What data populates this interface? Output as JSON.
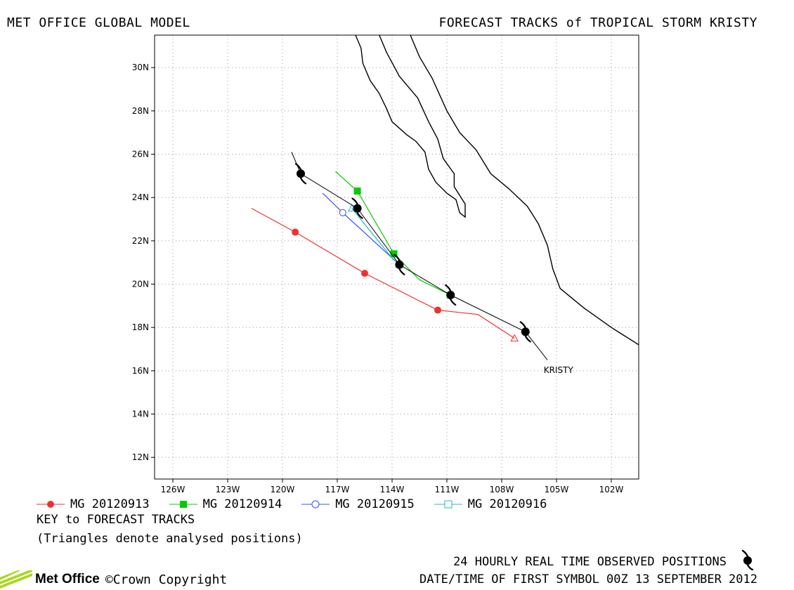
{
  "header": {
    "left_title": "MET OFFICE GLOBAL MODEL",
    "right_title": "FORECAST TRACKS of TROPICAL STORM KRISTY"
  },
  "map": {
    "lon_range": [
      -127,
      -100.5
    ],
    "lat_range": [
      11,
      31.5
    ],
    "lat_ticks": [
      "30N",
      "28N",
      "26N",
      "24N",
      "22N",
      "20N",
      "18N",
      "16N",
      "14N",
      "12N"
    ],
    "lon_ticks": [
      "126W",
      "123W",
      "120W",
      "117W",
      "114W",
      "111W",
      "108W",
      "105W",
      "102W"
    ],
    "grid": "dotted",
    "storm_label": "KRISTY",
    "colors": {
      "observed": "#000000",
      "mg_20120913": "#f03030",
      "mg_20120914": "#00cc00",
      "mg_20120915": "#3050ff",
      "mg_20120916": "#20b8c8",
      "coastline": "#000000"
    }
  },
  "chart_data": {
    "type": "map-tracks",
    "title": "FORECAST TRACKS of TROPICAL STORM KRISTY",
    "observed_track": {
      "line": [
        [
          -105.5,
          16.5
        ],
        [
          -106.7,
          17.8
        ],
        [
          -110.8,
          19.5
        ],
        [
          -113.6,
          20.9
        ],
        [
          -115.9,
          23.5
        ],
        [
          -119.0,
          25.1
        ],
        [
          -119.5,
          26.1
        ]
      ],
      "symbols": [
        [
          -106.7,
          17.8
        ],
        [
          -110.8,
          19.5
        ],
        [
          -113.6,
          20.9
        ],
        [
          -115.9,
          23.5
        ],
        [
          -119.0,
          25.1
        ]
      ]
    },
    "series": [
      {
        "name": "MG 20120913",
        "line": [
          [
            -107.3,
            17.5
          ],
          [
            -109.3,
            18.6
          ],
          [
            -111.5,
            18.8
          ],
          [
            -115.5,
            20.5
          ],
          [
            -119.3,
            22.4
          ],
          [
            -121.7,
            23.5
          ]
        ],
        "markers": [
          [
            -111.5,
            18.8
          ],
          [
            -115.5,
            20.5
          ],
          [
            -119.3,
            22.4
          ]
        ],
        "marker_shape": "filled-circle",
        "analysed": [
          -107.3,
          17.5
        ]
      },
      {
        "name": "MG 20120914",
        "line": [
          [
            -110.8,
            19.5
          ],
          [
            -112.5,
            20.2
          ],
          [
            -113.9,
            21.4
          ],
          [
            -115.9,
            24.3
          ],
          [
            -117.1,
            25.2
          ]
        ],
        "markers": [
          [
            -113.9,
            21.4
          ],
          [
            -115.9,
            24.3
          ]
        ],
        "marker_shape": "filled-square",
        "analysed": [
          -110.8,
          19.5
        ]
      },
      {
        "name": "MG 20120915",
        "line": [
          [
            -113.6,
            20.9
          ],
          [
            -116.7,
            23.3
          ],
          [
            -117.8,
            24.2
          ]
        ],
        "markers": [
          [
            -116.7,
            23.3
          ]
        ],
        "marker_shape": "open-circle",
        "analysed": [
          -113.6,
          20.9
        ]
      },
      {
        "name": "MG 20120916",
        "line": [
          [
            -113.9,
            21.1
          ],
          [
            -116.2,
            23.5
          ]
        ],
        "markers": [],
        "marker_shape": "open-square",
        "analysed": [
          -116.2,
          23.5
        ]
      }
    ]
  },
  "legend": {
    "items": [
      {
        "label": "MG 20120913"
      },
      {
        "label": "MG 20120914"
      },
      {
        "label": "MG 20120915"
      },
      {
        "label": "MG 20120916"
      }
    ],
    "key_title": "KEY to FORECAST TRACKS",
    "key_note": "(Triangles denote analysed positions)"
  },
  "footer": {
    "observed_label": "24 HOURLY REAL TIME OBSERVED POSITIONS",
    "date_label": "DATE/TIME OF FIRST SYMBOL 00Z 13 SEPTEMBER 2012",
    "brand": "Met Office",
    "copyright": "©Crown Copyright"
  }
}
